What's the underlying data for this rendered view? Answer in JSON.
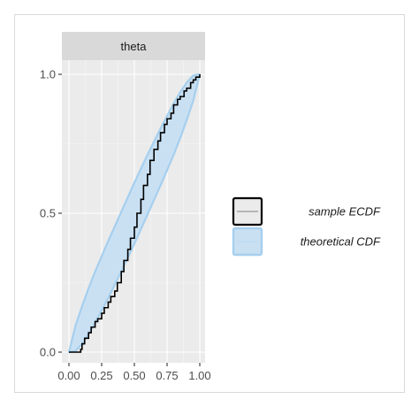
{
  "chart_data": {
    "type": "line",
    "facet": "theta",
    "xlim": [
      0,
      1
    ],
    "ylim": [
      0,
      1
    ],
    "x_ticks": [
      0,
      0.25,
      0.5,
      0.75,
      1
    ],
    "x_tick_labels": [
      "0.00",
      "0.25",
      "0.50",
      "0.75",
      "1.00"
    ],
    "y_ticks": [
      0,
      0.5,
      1
    ],
    "y_tick_labels": [
      "0.0",
      "0.5",
      "1.0"
    ],
    "legend_position": "right",
    "grid": true,
    "series": [
      {
        "name": "sample ECDF",
        "color": "#000000",
        "x": [
          0,
          0.05,
          0.09,
          0.1,
          0.12,
          0.15,
          0.17,
          0.2,
          0.22,
          0.25,
          0.27,
          0.3,
          0.32,
          0.35,
          0.37,
          0.4,
          0.42,
          0.45,
          0.47,
          0.5,
          0.52,
          0.55,
          0.57,
          0.6,
          0.62,
          0.65,
          0.68,
          0.7,
          0.73,
          0.75,
          0.78,
          0.8,
          0.83,
          0.85,
          0.88,
          0.9,
          0.93,
          0.95,
          0.97,
          1.0
        ],
        "y": [
          0,
          0,
          0.01,
          0.03,
          0.05,
          0.07,
          0.09,
          0.11,
          0.12,
          0.14,
          0.16,
          0.18,
          0.2,
          0.22,
          0.25,
          0.29,
          0.33,
          0.37,
          0.41,
          0.45,
          0.5,
          0.55,
          0.6,
          0.64,
          0.69,
          0.73,
          0.76,
          0.79,
          0.82,
          0.84,
          0.86,
          0.89,
          0.91,
          0.92,
          0.94,
          0.95,
          0.97,
          0.98,
          0.99,
          1.0
        ]
      },
      {
        "name": "theoretical CDF",
        "color": "#a6cfee",
        "fill": "#c9e0f3",
        "x": [
          0,
          0.05,
          0.1,
          0.15,
          0.2,
          0.3,
          0.4,
          0.5,
          0.6,
          0.7,
          0.8,
          0.85,
          0.9,
          0.95,
          1.0
        ],
        "lower": [
          0,
          0.004,
          0.03,
          0.065,
          0.105,
          0.195,
          0.29,
          0.39,
          0.495,
          0.6,
          0.71,
          0.77,
          0.835,
          0.905,
          1.0
        ],
        "upper": [
          0,
          0.095,
          0.165,
          0.23,
          0.29,
          0.4,
          0.505,
          0.61,
          0.71,
          0.805,
          0.895,
          0.935,
          0.97,
          0.996,
          1.0
        ]
      }
    ]
  }
}
